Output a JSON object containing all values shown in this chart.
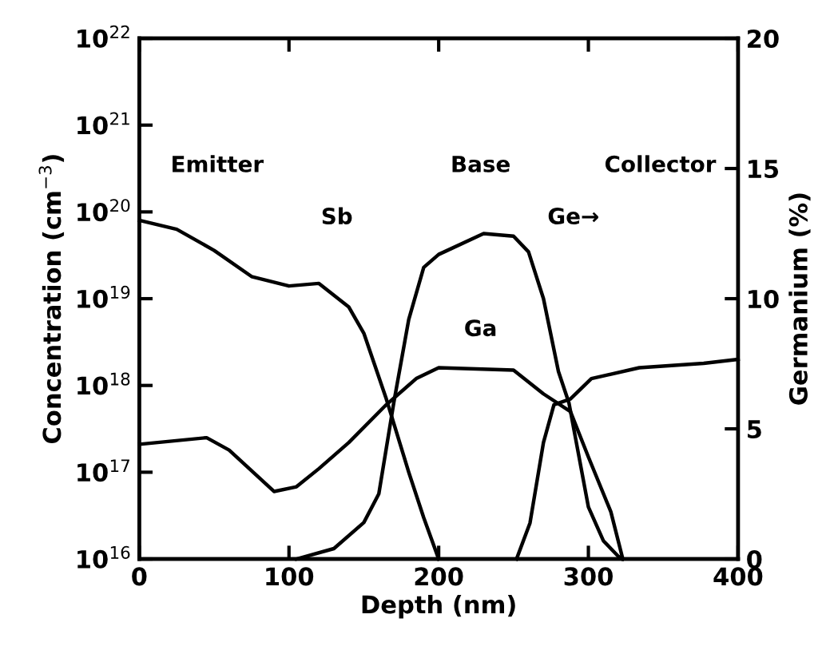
{
  "chart_data": {
    "type": "line",
    "xlabel": "Depth (nm)",
    "ylabel": "Concentration (cm$^{−3}$)",
    "y2label": "Germanium (%)",
    "xlim": [
      0,
      400
    ],
    "xticks": [
      0,
      100,
      200,
      300,
      400
    ],
    "log": "y",
    "ylim": [
      1e+16,
      1e+22
    ],
    "yticks": [
      {
        "value": 1e+16,
        "label": "10$^{16}$"
      },
      {
        "value": 1e+17,
        "label": "10$^{17}$"
      },
      {
        "value": 1e+18,
        "label": "10$^{18}$"
      },
      {
        "value": 1e+19,
        "label": "10$^{19}$"
      },
      {
        "value": 1e+20,
        "label": "10$^{20}$"
      },
      {
        "value": 1e+21,
        "label": "10$^{21}$"
      },
      {
        "value": 1e+22,
        "label": "10$^{22}$"
      }
    ],
    "y2lim": [
      0,
      20
    ],
    "y2ticks": [
      0,
      5,
      10,
      15,
      20
    ],
    "grid": false,
    "marker": "none",
    "line_style": "solid",
    "series": [
      {
        "name": "Sb",
        "color": "#000000",
        "x": [
          0,
          25,
          50,
          75,
          100,
          120,
          140,
          150,
          165,
          180,
          190,
          200
        ],
        "values": [
          8e+19,
          6.3e+19,
          3.6e+19,
          1.8e+19,
          1.4e+19,
          1.5e+19,
          8e+18,
          4e+18,
          7e+17,
          1e+17,
          3e+16,
          1e+16
        ]
      },
      {
        "name": "Ga",
        "color": "#000000",
        "x": [
          0,
          45,
          60,
          90,
          105,
          120,
          140,
          165,
          185,
          200,
          250,
          270,
          288,
          300,
          315,
          323
        ],
        "values": [
          2.1e+17,
          2.5e+17,
          1.8e+17,
          6e+16,
          6.8e+16,
          1.1e+17,
          2.2e+17,
          6e+17,
          1.2e+18,
          1.6e+18,
          1.5e+18,
          8e+17,
          5e+17,
          1.5e+17,
          3.5e+16,
          1e+16
        ]
      },
      {
        "color": "#000000",
        "x": [
          252,
          261,
          270,
          277,
          288,
          302,
          334,
          377,
          400
        ],
        "values": [
          1e+16,
          2.6e+16,
          2.2e+17,
          6e+17,
          7e+17,
          1.2e+18,
          1.6e+18,
          1.8e+18,
          2e+18
        ]
      },
      {
        "name": "Ge→",
        "color": "#000000",
        "axis": "y2",
        "x": [
          105,
          130,
          150,
          160,
          170,
          180,
          190,
          200,
          230,
          250,
          260,
          270,
          280,
          287,
          300,
          310,
          320,
          323
        ],
        "values": [
          0,
          0.4,
          1.4,
          2.5,
          6,
          9.2,
          11.2,
          11.7,
          12.5,
          12.4,
          11.8,
          10,
          7.2,
          6,
          2,
          0.7,
          0.1,
          0
        ]
      }
    ],
    "annotations": [
      "Emitter",
      "Base",
      "Collector"
    ]
  }
}
